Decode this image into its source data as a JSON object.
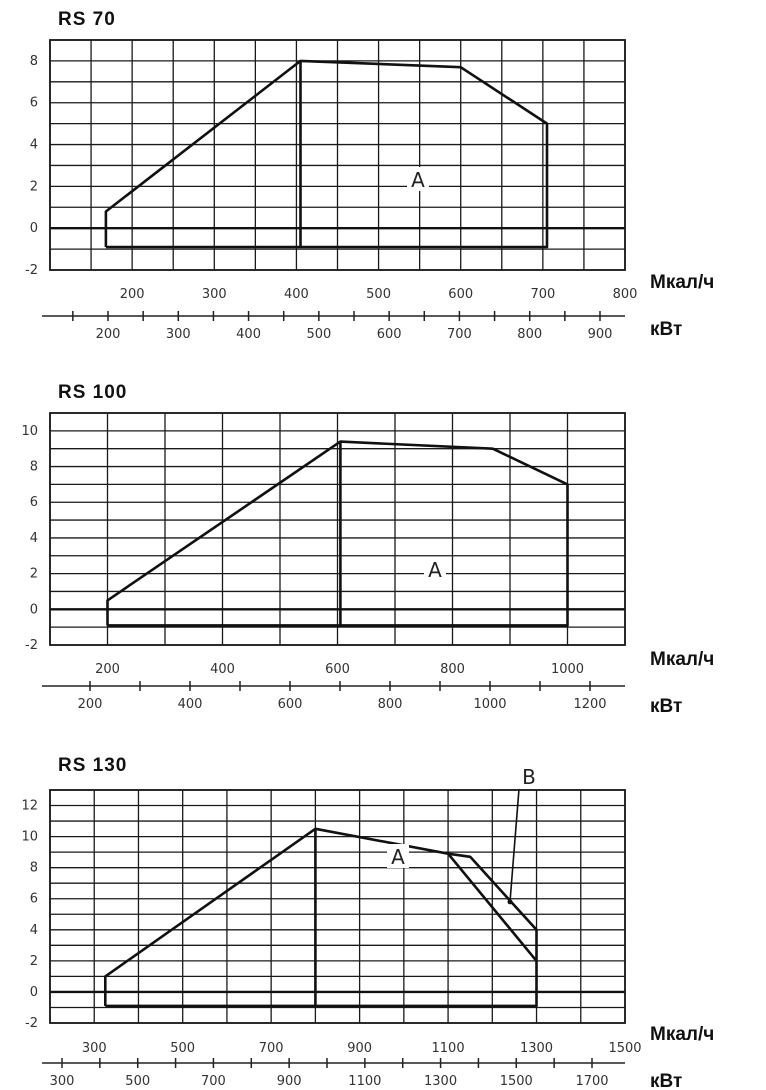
{
  "chart_data": [
    {
      "type": "line",
      "title": "RS 70",
      "units": [
        "Мкал/ч",
        "кВт"
      ],
      "y_ticks": [
        -2,
        0,
        2,
        4,
        6,
        8
      ],
      "ylim": [
        -2,
        9
      ],
      "x_ticks_top": [
        200,
        300,
        400,
        500,
        600,
        700,
        800
      ],
      "x_ticks_bottom": [
        200,
        300,
        400,
        500,
        600,
        700,
        800,
        900
      ],
      "xlim": [
        100,
        800
      ],
      "region_labels": [
        "A"
      ],
      "series": [
        {
          "points": [
            [
              168,
              -0.9
            ],
            [
              168,
              0.8
            ],
            [
              405,
              8
            ],
            [
              600,
              7.7
            ],
            [
              705,
              5
            ],
            [
              705,
              -0.9
            ],
            [
              168,
              -0.9
            ]
          ]
        },
        {
          "points": [
            [
              405,
              8
            ],
            [
              405,
              -0.9
            ]
          ]
        }
      ]
    },
    {
      "type": "line",
      "title": "RS 100",
      "units": [
        "Мкал/ч",
        "кВт"
      ],
      "y_ticks": [
        -2,
        0,
        2,
        4,
        6,
        8,
        10
      ],
      "ylim": [
        -2,
        11
      ],
      "x_ticks_top": [
        200,
        400,
        600,
        800,
        1000
      ],
      "x_ticks_bottom": [
        200,
        400,
        600,
        800,
        1000,
        1200
      ],
      "xlim": [
        100,
        1100
      ],
      "region_labels": [
        "A"
      ],
      "series": [
        {
          "points": [
            [
              200,
              -0.9
            ],
            [
              200,
              0.5
            ],
            [
              605,
              9.4
            ],
            [
              870,
              9.0
            ],
            [
              1000,
              7
            ],
            [
              1000,
              -0.9
            ],
            [
              200,
              -0.9
            ]
          ]
        },
        {
          "points": [
            [
              605,
              9.4
            ],
            [
              605,
              -0.9
            ]
          ]
        }
      ]
    },
    {
      "type": "line",
      "title": "RS 130",
      "units": [
        "Мкал/ч",
        "кВт"
      ],
      "y_ticks": [
        -2,
        0,
        2,
        4,
        6,
        8,
        10,
        12
      ],
      "ylim": [
        -2,
        13
      ],
      "x_ticks_top": [
        300,
        500,
        700,
        900,
        1100,
        1300,
        1500
      ],
      "x_ticks_bottom": [
        300,
        500,
        700,
        900,
        1100,
        1300,
        1500,
        1700
      ],
      "xlim": [
        200,
        1500
      ],
      "region_labels": [
        "A",
        "B"
      ],
      "series": [
        {
          "points": [
            [
              325,
              -0.9
            ],
            [
              325,
              1
            ],
            [
              800,
              10.5
            ],
            [
              1100,
              8.9
            ],
            [
              1300,
              2
            ],
            [
              1300,
              -0.9
            ],
            [
              325,
              -0.9
            ]
          ]
        },
        {
          "points": [
            [
              800,
              10.5
            ],
            [
              800,
              -0.9
            ]
          ]
        },
        {
          "points": [
            [
              1100,
              8.9
            ],
            [
              1150,
              8.7
            ],
            [
              1300,
              4
            ],
            [
              1300,
              2
            ]
          ]
        }
      ]
    }
  ]
}
